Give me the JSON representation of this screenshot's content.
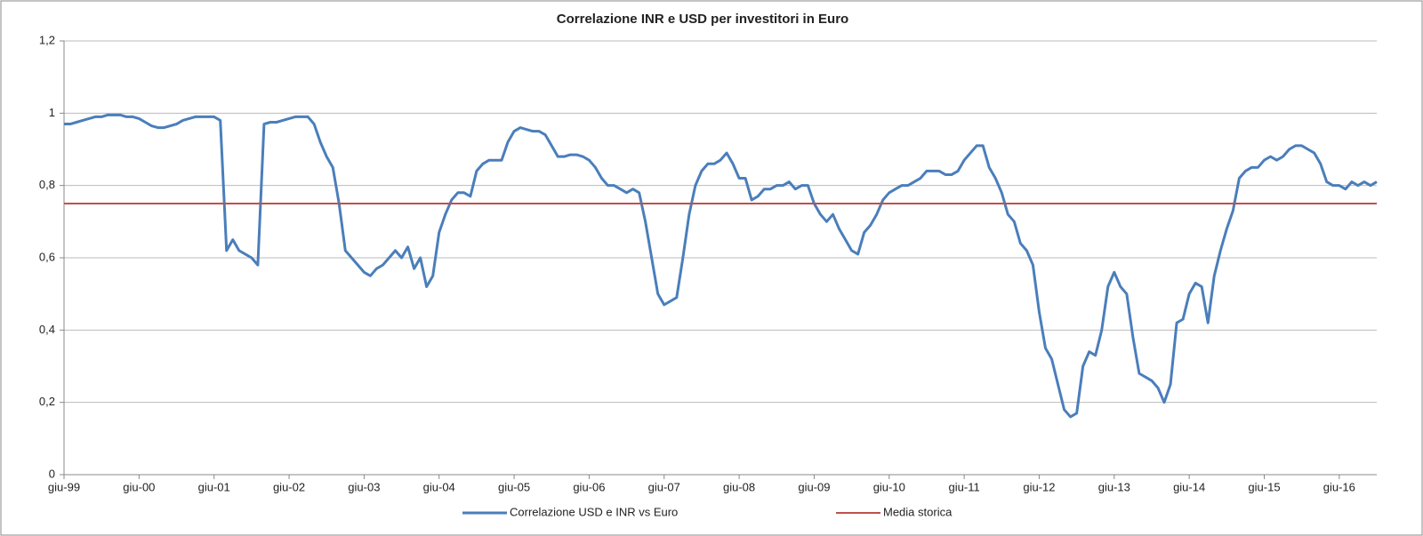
{
  "chart_data": {
    "type": "line",
    "title": "Correlazione INR e USD per investitori in Euro",
    "categories": [
      "giu-99",
      null,
      null,
      null,
      null,
      null,
      null,
      null,
      null,
      null,
      null,
      null,
      "giu-00",
      null,
      null,
      null,
      null,
      null,
      null,
      null,
      null,
      null,
      null,
      null,
      "giu-01",
      null,
      null,
      null,
      null,
      null,
      null,
      null,
      null,
      null,
      null,
      null,
      "giu-02",
      null,
      null,
      null,
      null,
      null,
      null,
      null,
      null,
      null,
      null,
      null,
      "giu-03",
      null,
      null,
      null,
      null,
      null,
      null,
      null,
      null,
      null,
      null,
      null,
      "giu-04",
      null,
      null,
      null,
      null,
      null,
      null,
      null,
      null,
      null,
      null,
      null,
      "giu-05",
      null,
      null,
      null,
      null,
      null,
      null,
      null,
      null,
      null,
      null,
      null,
      "giu-06",
      null,
      null,
      null,
      null,
      null,
      null,
      null,
      null,
      null,
      null,
      null,
      "giu-07",
      null,
      null,
      null,
      null,
      null,
      null,
      null,
      null,
      null,
      null,
      null,
      "giu-08",
      null,
      null,
      null,
      null,
      null,
      null,
      null,
      null,
      null,
      null,
      null,
      "giu-09",
      null,
      null,
      null,
      null,
      null,
      null,
      null,
      null,
      null,
      null,
      null,
      "giu-10",
      null,
      null,
      null,
      null,
      null,
      null,
      null,
      null,
      null,
      null,
      null,
      "giu-11",
      null,
      null,
      null,
      null,
      null,
      null,
      null,
      null,
      null,
      null,
      null,
      "giu-12",
      null,
      null,
      null,
      null,
      null,
      null,
      null,
      null,
      null,
      null,
      null,
      "giu-13",
      null,
      null,
      null,
      null,
      null,
      null,
      null,
      null,
      null,
      null,
      null,
      "giu-14",
      null,
      null,
      null,
      null,
      null,
      null,
      null,
      null,
      null,
      null,
      null,
      "giu-15",
      null,
      null,
      null,
      null,
      null,
      null,
      null,
      null,
      null,
      null,
      null,
      "giu-16",
      null,
      null,
      null,
      null,
      null,
      null
    ],
    "series": [
      {
        "name": "Correlazione USD e INR vs Euro",
        "color": "#4a7ebb",
        "values": [
          0.97,
          0.97,
          0.975,
          0.98,
          0.985,
          0.99,
          0.99,
          0.995,
          0.995,
          0.995,
          0.99,
          0.99,
          0.985,
          0.975,
          0.965,
          0.96,
          0.96,
          0.965,
          0.97,
          0.98,
          0.985,
          0.99,
          0.99,
          0.99,
          0.99,
          0.98,
          0.62,
          0.65,
          0.62,
          0.61,
          0.6,
          0.58,
          0.97,
          0.975,
          0.975,
          0.98,
          0.985,
          0.99,
          0.99,
          0.99,
          0.97,
          0.92,
          0.88,
          0.85,
          0.75,
          0.62,
          0.6,
          0.58,
          0.56,
          0.55,
          0.57,
          0.58,
          0.6,
          0.62,
          0.6,
          0.63,
          0.57,
          0.6,
          0.52,
          0.55,
          0.67,
          0.72,
          0.76,
          0.78,
          0.78,
          0.77,
          0.84,
          0.86,
          0.87,
          0.87,
          0.87,
          0.92,
          0.95,
          0.96,
          0.955,
          0.95,
          0.95,
          0.94,
          0.91,
          0.88,
          0.88,
          0.885,
          0.885,
          0.88,
          0.87,
          0.85,
          0.82,
          0.8,
          0.8,
          0.79,
          0.78,
          0.79,
          0.78,
          0.7,
          0.6,
          0.5,
          0.47,
          0.48,
          0.49,
          0.6,
          0.72,
          0.8,
          0.84,
          0.86,
          0.86,
          0.87,
          0.89,
          0.86,
          0.82,
          0.82,
          0.76,
          0.77,
          0.79,
          0.79,
          0.8,
          0.8,
          0.81,
          0.79,
          0.8,
          0.8,
          0.75,
          0.72,
          0.7,
          0.72,
          0.68,
          0.65,
          0.62,
          0.61,
          0.67,
          0.69,
          0.72,
          0.76,
          0.78,
          0.79,
          0.8,
          0.8,
          0.81,
          0.82,
          0.84,
          0.84,
          0.84,
          0.83,
          0.83,
          0.84,
          0.87,
          0.89,
          0.91,
          0.91,
          0.85,
          0.82,
          0.78,
          0.72,
          0.7,
          0.64,
          0.62,
          0.58,
          0.45,
          0.35,
          0.32,
          0.25,
          0.18,
          0.16,
          0.17,
          0.3,
          0.34,
          0.33,
          0.4,
          0.52,
          0.56,
          0.52,
          0.5,
          0.38,
          0.28,
          0.27,
          0.26,
          0.24,
          0.2,
          0.25,
          0.42,
          0.43,
          0.5,
          0.53,
          0.52,
          0.42,
          0.55,
          0.62,
          0.68,
          0.73,
          0.82,
          0.84,
          0.85,
          0.85,
          0.87,
          0.88,
          0.87,
          0.88,
          0.9,
          0.91,
          0.91,
          0.9,
          0.89,
          0.86,
          0.81,
          0.8,
          0.8,
          0.79,
          0.81,
          0.8,
          0.81,
          0.8,
          0.81
        ]
      },
      {
        "name": "Media storica",
        "color": "#c0504d",
        "values": [
          0.75,
          0.75,
          0.75,
          0.75,
          0.75,
          0.75,
          0.75,
          0.75,
          0.75,
          0.75,
          0.75,
          0.75,
          0.75,
          0.75,
          0.75,
          0.75,
          0.75,
          0.75,
          0.75,
          0.75,
          0.75,
          0.75,
          0.75,
          0.75,
          0.75,
          0.75,
          0.75,
          0.75,
          0.75,
          0.75,
          0.75,
          0.75,
          0.75,
          0.75,
          0.75,
          0.75,
          0.75,
          0.75,
          0.75,
          0.75,
          0.75,
          0.75,
          0.75,
          0.75,
          0.75,
          0.75,
          0.75,
          0.75,
          0.75,
          0.75,
          0.75,
          0.75,
          0.75,
          0.75,
          0.75,
          0.75,
          0.75,
          0.75,
          0.75,
          0.75,
          0.75,
          0.75,
          0.75,
          0.75,
          0.75,
          0.75,
          0.75,
          0.75,
          0.75,
          0.75,
          0.75,
          0.75,
          0.75,
          0.75,
          0.75,
          0.75,
          0.75,
          0.75,
          0.75,
          0.75,
          0.75,
          0.75,
          0.75,
          0.75,
          0.75,
          0.75,
          0.75,
          0.75,
          0.75,
          0.75,
          0.75,
          0.75,
          0.75,
          0.75,
          0.75,
          0.75,
          0.75,
          0.75,
          0.75,
          0.75,
          0.75,
          0.75,
          0.75,
          0.75,
          0.75,
          0.75,
          0.75,
          0.75,
          0.75,
          0.75,
          0.75,
          0.75,
          0.75,
          0.75,
          0.75,
          0.75,
          0.75,
          0.75,
          0.75,
          0.75,
          0.75,
          0.75,
          0.75,
          0.75,
          0.75,
          0.75,
          0.75,
          0.75,
          0.75,
          0.75,
          0.75,
          0.75,
          0.75,
          0.75,
          0.75,
          0.75,
          0.75,
          0.75,
          0.75,
          0.75,
          0.75,
          0.75,
          0.75,
          0.75,
          0.75,
          0.75,
          0.75,
          0.75,
          0.75,
          0.75,
          0.75,
          0.75,
          0.75,
          0.75,
          0.75,
          0.75,
          0.75,
          0.75,
          0.75,
          0.75,
          0.75,
          0.75,
          0.75,
          0.75,
          0.75,
          0.75,
          0.75,
          0.75,
          0.75,
          0.75,
          0.75,
          0.75,
          0.75,
          0.75,
          0.75,
          0.75,
          0.75,
          0.75,
          0.75,
          0.75,
          0.75,
          0.75,
          0.75,
          0.75,
          0.75,
          0.75,
          0.75,
          0.75,
          0.75,
          0.75,
          0.75,
          0.75,
          0.75,
          0.75,
          0.75,
          0.75,
          0.75,
          0.75,
          0.75,
          0.75,
          0.75,
          0.75,
          0.75,
          0.75,
          0.75,
          0.75,
          0.75,
          0.75,
          0.75,
          0.75,
          0.75
        ]
      }
    ],
    "ylim": [
      0,
      1.2
    ],
    "yticks": [
      0,
      {
        "value": 0.2,
        "label": "0,2"
      },
      {
        "value": 0.4,
        "label": "0,4"
      },
      {
        "value": 0.6,
        "label": "0,6"
      },
      {
        "value": 0.8,
        "label": "0,8"
      },
      1,
      {
        "value": 1.2,
        "label": "1,2"
      }
    ],
    "grid": true,
    "legend": "bottom"
  }
}
